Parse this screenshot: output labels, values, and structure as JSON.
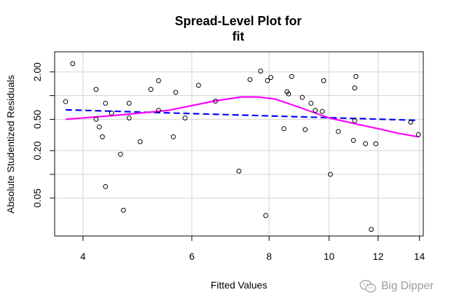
{
  "chart_data": {
    "type": "scatter",
    "title_lines": [
      "Spread-Level Plot for",
      "fit"
    ],
    "xlabel": "Fitted Values",
    "ylabel": "Absolute Studentized Residuals",
    "x_scale": "log",
    "y_scale": "log",
    "xlim": [
      3.6,
      14.2
    ],
    "ylim": [
      0.0165,
      3.6
    ],
    "x_ticks": [
      4,
      6,
      8,
      10,
      12,
      14
    ],
    "x_tick_labels": [
      "4",
      "6",
      "8",
      "10",
      "12",
      "14"
    ],
    "y_ticks": [
      0.05,
      0.2,
      0.5,
      2.0
    ],
    "y_tick_labels": [
      "0.05",
      "0.20",
      "0.50",
      "2.00"
    ],
    "grid_x": [
      4,
      6,
      8,
      10,
      12,
      14
    ],
    "grid_y": [
      0.05,
      0.1,
      0.2,
      0.5,
      1.0,
      2.0
    ],
    "grid": true,
    "colors": {
      "points": "#000000",
      "fit_line": "#0000ff",
      "smooth_line": "#ff00ff",
      "grid": "#d3d3d3"
    },
    "points": [
      [
        3.75,
        0.84
      ],
      [
        3.85,
        2.55
      ],
      [
        4.2,
        1.2
      ],
      [
        4.2,
        0.5
      ],
      [
        4.25,
        0.4
      ],
      [
        4.3,
        0.3
      ],
      [
        4.35,
        0.8
      ],
      [
        4.35,
        0.07
      ],
      [
        4.45,
        0.6
      ],
      [
        4.6,
        0.18
      ],
      [
        4.65,
        0.035
      ],
      [
        4.75,
        0.52
      ],
      [
        4.75,
        0.8
      ],
      [
        4.95,
        0.26
      ],
      [
        5.15,
        1.2
      ],
      [
        5.3,
        1.55
      ],
      [
        5.3,
        0.65
      ],
      [
        5.6,
        0.3
      ],
      [
        5.65,
        1.1
      ],
      [
        5.85,
        0.52
      ],
      [
        6.15,
        1.35
      ],
      [
        6.55,
        0.85
      ],
      [
        7.15,
        0.11
      ],
      [
        7.45,
        1.6
      ],
      [
        7.75,
        2.05
      ],
      [
        7.9,
        0.03
      ],
      [
        7.95,
        1.55
      ],
      [
        8.05,
        1.7
      ],
      [
        8.45,
        0.38
      ],
      [
        8.55,
        1.12
      ],
      [
        8.6,
        1.05
      ],
      [
        8.7,
        1.75
      ],
      [
        9.05,
        0.95
      ],
      [
        9.15,
        0.37
      ],
      [
        9.35,
        0.8
      ],
      [
        9.5,
        0.65
      ],
      [
        9.75,
        0.63
      ],
      [
        9.8,
        1.55
      ],
      [
        10.05,
        0.1
      ],
      [
        10.35,
        0.35
      ],
      [
        10.95,
        0.27
      ],
      [
        11.0,
        1.25
      ],
      [
        11.0,
        0.48
      ],
      [
        11.05,
        1.75
      ],
      [
        11.45,
        0.245
      ],
      [
        11.7,
        0.02
      ],
      [
        11.9,
        0.245
      ],
      [
        13.55,
        0.46
      ],
      [
        13.95,
        0.32
      ]
    ],
    "fit_line": {
      "x": [
        3.75,
        13.95
      ],
      "y": [
        0.66,
        0.485
      ]
    },
    "smooth_line": {
      "x": [
        3.75,
        4.5,
        5.5,
        6.5,
        7.2,
        7.7,
        8.2,
        9.0,
        10.0,
        11.0,
        12.0,
        13.0,
        13.95
      ],
      "y": [
        0.5,
        0.56,
        0.65,
        0.85,
        0.96,
        0.96,
        0.9,
        0.7,
        0.52,
        0.44,
        0.38,
        0.33,
        0.3
      ]
    }
  },
  "watermark": {
    "text": "Big Dipper"
  }
}
